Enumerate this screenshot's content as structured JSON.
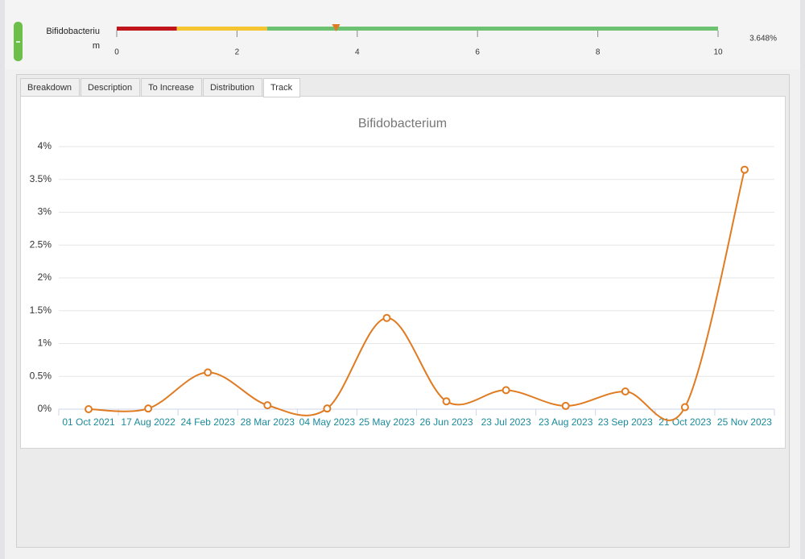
{
  "gauge": {
    "label": "Bifidobacterium",
    "lim": [
      0,
      10
    ],
    "ticks": [
      0,
      2,
      4,
      6,
      8,
      10
    ],
    "segments": [
      {
        "color": "#c0151a",
        "start": 0,
        "end": 1
      },
      {
        "color": "#f5c431",
        "start": 1,
        "end": 2.5
      },
      {
        "color": "#6cc270",
        "start": 2.5,
        "end": 10
      }
    ],
    "value": 3.648,
    "value_label": "3.648%",
    "marker_color": "#e07b22"
  },
  "tabs": {
    "items": [
      "Breakdown",
      "Description",
      "To Increase",
      "Distribution",
      "Track"
    ],
    "active": 4
  },
  "chart_data": {
    "type": "line",
    "title": "Bifidobacterium",
    "categories": [
      "01 Oct 2021",
      "17 Aug 2022",
      "24 Feb 2023",
      "28 Mar 2023",
      "04 May 2023",
      "25 May 2023",
      "26 Jun 2023",
      "23 Jul 2023",
      "23 Aug 2023",
      "23 Sep 2023",
      "21 Oct 2023",
      "25 Nov 2023"
    ],
    "series": [
      {
        "name": "Bifidobacterium",
        "color": "#e07b22",
        "values": [
          0,
          0.01,
          0.56,
          0.06,
          0.01,
          1.39,
          0.12,
          0.29,
          0.05,
          0.27,
          0.03,
          3.648
        ]
      }
    ],
    "ylim": [
      0,
      4
    ],
    "yticks": [
      {
        "value": 0,
        "label": "0%"
      },
      {
        "value": 0.5,
        "label": "0.5%"
      },
      {
        "value": 1,
        "label": "1%"
      },
      {
        "value": 1.5,
        "label": "1.5%"
      },
      {
        "value": 2,
        "label": "2%"
      },
      {
        "value": 2.5,
        "label": "2.5%"
      },
      {
        "value": 3,
        "label": "3%"
      },
      {
        "value": 3.5,
        "label": "3.5%"
      },
      {
        "value": 4,
        "label": "4%"
      }
    ],
    "grid": true
  }
}
